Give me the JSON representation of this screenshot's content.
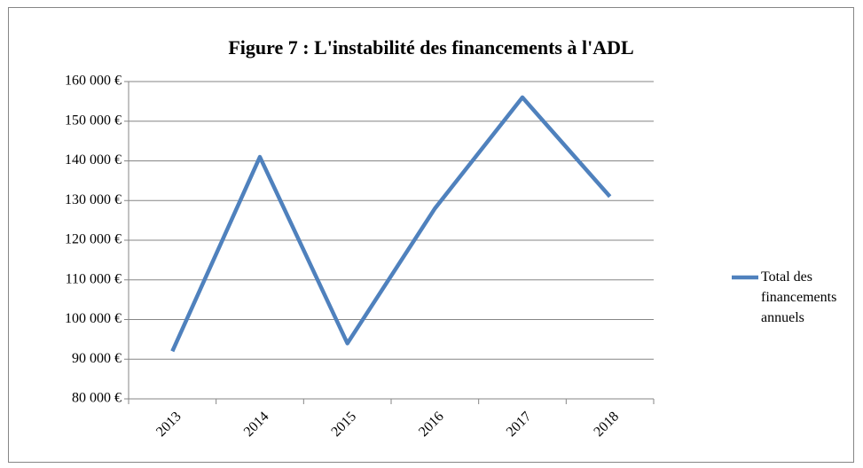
{
  "chart_data": {
    "type": "line",
    "title": "Figure 7 : L'instabilité des financements à l'ADL",
    "categories": [
      "2013",
      "2014",
      "2015",
      "2016",
      "2017",
      "2018"
    ],
    "series": [
      {
        "name": "Total des financements annuels",
        "color": "#4f81bd",
        "values": [
          92000,
          141000,
          94000,
          128000,
          156000,
          131000
        ]
      }
    ],
    "ylim": [
      80000,
      160000
    ],
    "yticks": [
      {
        "value": 80000,
        "label": "80 000 €"
      },
      {
        "value": 90000,
        "label": "90 000 €"
      },
      {
        "value": 100000,
        "label": "100 000 €"
      },
      {
        "value": 110000,
        "label": "110 000 €"
      },
      {
        "value": 120000,
        "label": "120 000 €"
      },
      {
        "value": 130000,
        "label": "130 000 €"
      },
      {
        "value": 140000,
        "label": "140 000 €"
      },
      {
        "value": 150000,
        "label": "150 000 €"
      },
      {
        "value": 160000,
        "label": "160 000 €"
      }
    ],
    "grid": true,
    "legend": "right"
  }
}
